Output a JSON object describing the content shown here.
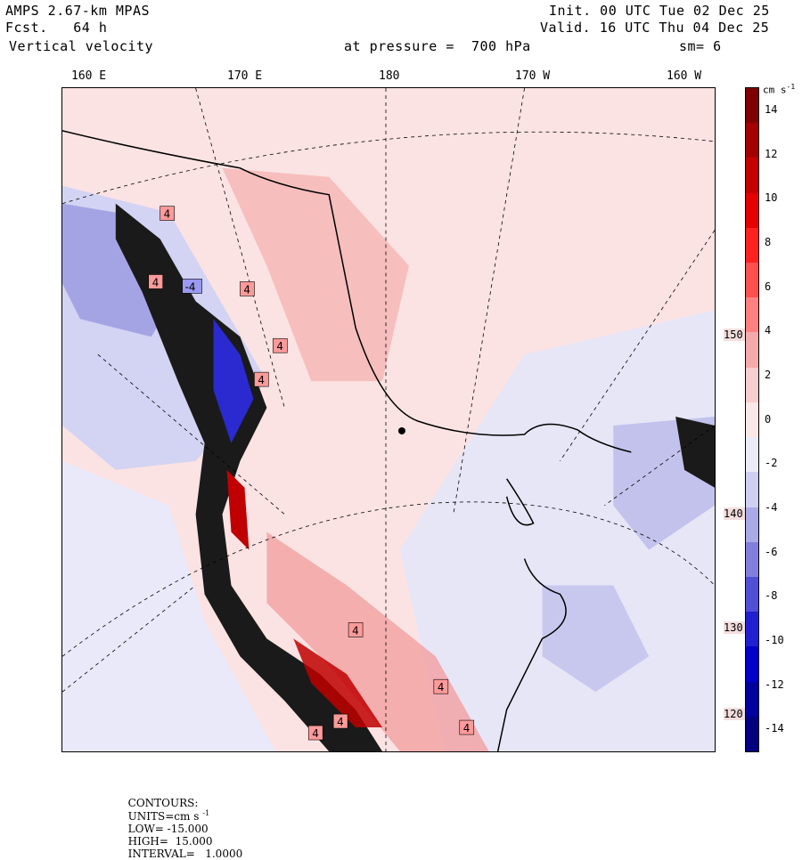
{
  "header": {
    "model": "AMPS 2.67-km MPAS",
    "forecast": "Fcst.   64 h",
    "variable": "Vertical velocity",
    "init": "Init. 00 UTC Tue 02 Dec 25",
    "valid": "Valid. 16 UTC Thu 04 Dec 25",
    "level": "at pressure =  700 hPa",
    "smoothing": "sm= 6"
  },
  "map": {
    "longitude_labels": [
      "160 E",
      "170 E",
      "180",
      "170 W",
      "160 W"
    ],
    "latitude_labels": [
      "150 W",
      "140 W",
      "130 W",
      "120 W"
    ],
    "contour_labels": [
      "4",
      "-4",
      "4",
      "4",
      "4",
      "4",
      "4",
      "4",
      "4",
      "4",
      "4"
    ]
  },
  "colorbar": {
    "units_label": "cm s",
    "units_exponent": "-1",
    "tick_labels": [
      "14",
      "12",
      "10",
      "8",
      "6",
      "4",
      "2",
      "0",
      "-2",
      "-4",
      "-6",
      "-8",
      "-10",
      "-12",
      "-14"
    ],
    "colors": [
      "#7f0000",
      "#a40000",
      "#c40000",
      "#e60000",
      "#ff2020",
      "#ff5050",
      "#ff8080",
      "#f4aaaa",
      "#f6cece",
      "#f8e8e8",
      "#ececf8",
      "#cfcff2",
      "#aaaae6",
      "#8080dc",
      "#5050d6",
      "#2020d0",
      "#0000c8",
      "#0000a0",
      "#000080"
    ]
  },
  "footer": {
    "contours": "CONTOURS:",
    "units": "UNITS=cm s",
    "units_exp": "-1",
    "low": "LOW= -15.000",
    "high": "HIGH=  15.000",
    "interval": "INTERVAL=   1.0000"
  },
  "chart_data": {
    "type": "heatmap",
    "title": "Vertical velocity",
    "subtitle": "AMPS 2.67-km MPAS  Fcst. 64 h  at pressure = 700 hPa",
    "units": "cm s-1",
    "contour_low": -15.0,
    "contour_high": 15.0,
    "contour_interval": 1.0,
    "colorbar_range": [
      -15,
      15
    ],
    "colorbar_ticks": [
      14,
      12,
      10,
      8,
      6,
      4,
      2,
      0,
      -2,
      -4,
      -6,
      -8,
      -10,
      -12,
      -14
    ],
    "longitude_ticks": [
      "160 E",
      "170 E",
      "180",
      "170 W",
      "160 W"
    ],
    "latitude_ticks": [
      "150 W",
      "140 W",
      "130 W",
      "120 W"
    ],
    "dominant_contour_label_value": 4
  }
}
